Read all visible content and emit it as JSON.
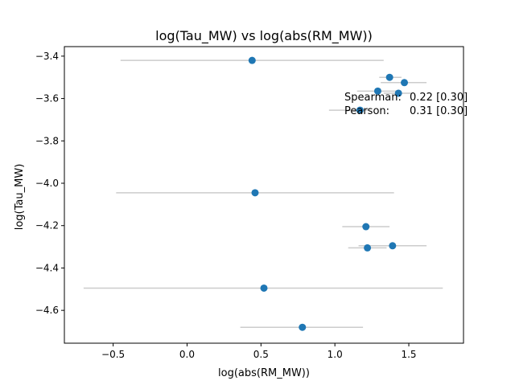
{
  "chart_data": {
    "type": "scatter",
    "title": "log(Tau_MW) vs log(abs(RM_MW))",
    "xlabel": "log(abs(RM_MW))",
    "ylabel": "log(Tau_MW)",
    "xlim": [
      -0.83,
      1.87
    ],
    "ylim": [
      -4.755,
      -3.355
    ],
    "xticks": [
      -0.5,
      0.0,
      0.5,
      1.0,
      1.5
    ],
    "xtick_labels": [
      "−0.5",
      "0.0",
      "0.5",
      "1.0",
      "1.5"
    ],
    "yticks": [
      -4.6,
      -4.4,
      -4.2,
      -4.0,
      -3.8,
      -3.6,
      -3.4
    ],
    "ytick_labels": [
      "−4.6",
      "−4.4",
      "−4.2",
      "−4.0",
      "−3.8",
      "−3.6",
      "−3.4"
    ],
    "grid": false,
    "point_color": "#1f77b4",
    "errorbar_color": "#cccccc",
    "points": [
      {
        "x": 0.44,
        "y": -3.42,
        "xerr_low": -0.45,
        "xerr_high": 1.33
      },
      {
        "x": 1.37,
        "y": -3.5,
        "xerr_low": 1.3,
        "xerr_high": 1.45
      },
      {
        "x": 1.47,
        "y": -3.525,
        "xerr_low": 1.31,
        "xerr_high": 1.62
      },
      {
        "x": 1.29,
        "y": -3.565,
        "xerr_low": 1.15,
        "xerr_high": 1.43
      },
      {
        "x": 1.43,
        "y": -3.575,
        "xerr_low": 1.33,
        "xerr_high": 1.53
      },
      {
        "x": 1.17,
        "y": -3.655,
        "xerr_low": 0.96,
        "xerr_high": 1.23
      },
      {
        "x": 0.46,
        "y": -4.045,
        "xerr_low": -0.48,
        "xerr_high": 1.4
      },
      {
        "x": 1.21,
        "y": -4.205,
        "xerr_low": 1.05,
        "xerr_high": 1.37
      },
      {
        "x": 1.39,
        "y": -4.295,
        "xerr_low": 1.16,
        "xerr_high": 1.62
      },
      {
        "x": 1.22,
        "y": -4.305,
        "xerr_low": 1.09,
        "xerr_high": 1.35
      },
      {
        "x": 0.52,
        "y": -4.495,
        "xerr_low": -0.7,
        "xerr_high": 1.73
      },
      {
        "x": 0.78,
        "y": -4.68,
        "xerr_low": 0.36,
        "xerr_high": 1.19
      }
    ],
    "annotations": [
      {
        "label": "Spearman:",
        "value": "0.22 [0.30]"
      },
      {
        "label": "Pearson:",
        "value": "0.31 [0.30]"
      }
    ]
  }
}
